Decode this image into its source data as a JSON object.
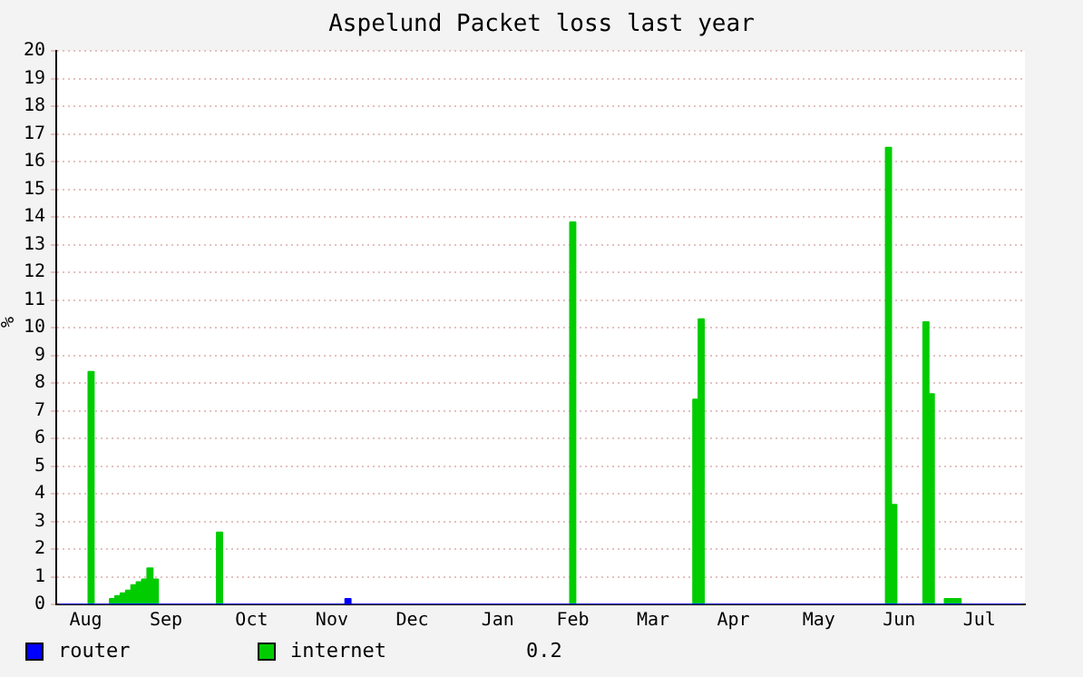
{
  "chart_data": {
    "type": "area",
    "title": "Aspelund Packet loss last year",
    "ylabel": "%",
    "categories": [
      null,
      null,
      null,
      null,
      null,
      "Aug",
      null,
      null,
      null,
      null,
      null,
      null,
      null,
      null,
      null,
      null,
      null,
      null,
      null,
      null,
      "Sep",
      null,
      null,
      null,
      null,
      null,
      null,
      null,
      null,
      null,
      null,
      null,
      null,
      null,
      null,
      null,
      "Oct",
      null,
      null,
      null,
      null,
      null,
      null,
      null,
      null,
      null,
      null,
      null,
      null,
      null,
      null,
      "Nov",
      null,
      null,
      null,
      null,
      null,
      null,
      null,
      null,
      null,
      null,
      null,
      null,
      null,
      null,
      "Dec",
      null,
      null,
      null,
      null,
      null,
      null,
      null,
      null,
      null,
      null,
      null,
      null,
      null,
      null,
      null,
      "Jan",
      null,
      null,
      null,
      null,
      null,
      null,
      null,
      null,
      null,
      null,
      null,
      null,
      null,
      "Feb",
      null,
      null,
      null,
      null,
      null,
      null,
      null,
      null,
      null,
      null,
      null,
      null,
      null,
      null,
      "Mar",
      null,
      null,
      null,
      null,
      null,
      null,
      null,
      null,
      null,
      null,
      null,
      null,
      null,
      null,
      "Apr",
      null,
      null,
      null,
      null,
      null,
      null,
      null,
      null,
      null,
      null,
      null,
      null,
      null,
      null,
      null,
      "May",
      null,
      null,
      null,
      null,
      null,
      null,
      null,
      null,
      null,
      null,
      null,
      null,
      null,
      null,
      "Jun",
      null,
      null,
      null,
      null,
      null,
      null,
      null,
      null,
      null,
      null,
      null,
      null,
      null,
      null,
      "Jul",
      null,
      null,
      null,
      null,
      null,
      null,
      null,
      null
    ],
    "ylim": [
      0,
      20
    ],
    "yticks": [
      0,
      1,
      2,
      3,
      4,
      5,
      6,
      7,
      8,
      9,
      10,
      11,
      12,
      13,
      14,
      15,
      16,
      17,
      18,
      19,
      20
    ],
    "grid": "y",
    "legend": "bottom left",
    "annotations": [
      "0.2"
    ],
    "series": [
      {
        "name": "internet",
        "color": "#00cc00",
        "values": [
          0,
          0,
          0,
          0,
          0,
          0,
          8.4,
          0,
          0,
          0,
          0.2,
          0.3,
          0.4,
          0.5,
          0.7,
          0.8,
          0.9,
          1.3,
          0.9,
          0,
          0,
          0,
          0,
          0,
          0,
          0,
          0,
          0,
          0,
          0,
          2.6,
          0,
          0,
          0,
          0,
          0,
          0,
          0,
          0,
          0,
          0,
          0,
          0,
          0,
          0,
          0,
          0,
          0,
          0,
          0,
          0,
          0,
          0,
          0,
          0,
          0,
          0,
          0,
          0,
          0,
          0,
          0,
          0,
          0,
          0,
          0,
          0,
          0,
          0,
          0,
          0,
          0,
          0,
          0,
          0,
          0,
          0,
          0,
          0,
          0,
          0,
          0,
          0,
          0,
          0,
          0,
          0,
          0,
          0,
          0,
          0,
          0,
          0,
          0,
          0,
          0,
          13.8,
          0,
          0,
          0,
          0,
          0,
          0,
          0,
          0,
          0,
          0,
          0,
          0,
          0,
          0,
          0,
          0,
          0,
          0,
          0,
          0,
          0,
          0,
          7.4,
          10.3,
          0,
          0,
          0,
          0,
          0,
          0,
          0,
          0,
          0,
          0,
          0,
          0,
          0,
          0,
          0,
          0,
          0,
          0,
          0,
          0,
          0,
          0,
          0,
          0,
          0,
          0,
          0,
          0,
          0,
          0,
          0,
          0,
          0,
          0,
          16.5,
          3.6,
          0,
          0,
          0,
          0,
          0,
          10.2,
          7.6,
          0,
          0,
          0.2,
          0.2,
          0.2,
          0,
          0,
          0,
          0,
          0,
          0,
          0,
          0,
          0,
          0,
          0,
          0
        ]
      },
      {
        "name": "router",
        "color": "#0000ff",
        "values": [
          0,
          0,
          0,
          0,
          0,
          0,
          0,
          0,
          0,
          0,
          0,
          0,
          0,
          0,
          0,
          0,
          0,
          0,
          0,
          0,
          0,
          0,
          0,
          0,
          0,
          0,
          0,
          0,
          0,
          0,
          0,
          0,
          0,
          0,
          0,
          0,
          0,
          0,
          0,
          0,
          0,
          0,
          0,
          0,
          0,
          0,
          0,
          0,
          0,
          0,
          0,
          0,
          0,
          0,
          0.2,
          0,
          0,
          0,
          0,
          0,
          0,
          0,
          0,
          0,
          0,
          0,
          0,
          0,
          0,
          0,
          0,
          0,
          0,
          0,
          0,
          0,
          0,
          0,
          0,
          0,
          0,
          0,
          0,
          0,
          0,
          0,
          0,
          0,
          0,
          0,
          0,
          0,
          0,
          0,
          0,
          0,
          0,
          0,
          0,
          0,
          0,
          0,
          0,
          0,
          0,
          0,
          0,
          0,
          0,
          0,
          0,
          0,
          0,
          0,
          0,
          0,
          0,
          0,
          0,
          0,
          0,
          0,
          0,
          0,
          0,
          0,
          0,
          0,
          0,
          0,
          0,
          0,
          0,
          0,
          0,
          0,
          0,
          0,
          0,
          0,
          0,
          0,
          0,
          0,
          0,
          0,
          0,
          0,
          0,
          0,
          0,
          0,
          0,
          0,
          0,
          0,
          0,
          0,
          0,
          0,
          0,
          0,
          0,
          0,
          0,
          0,
          0,
          0,
          0,
          0,
          0,
          0,
          0,
          0,
          0,
          0,
          0,
          0,
          0,
          0,
          0
        ]
      }
    ]
  }
}
